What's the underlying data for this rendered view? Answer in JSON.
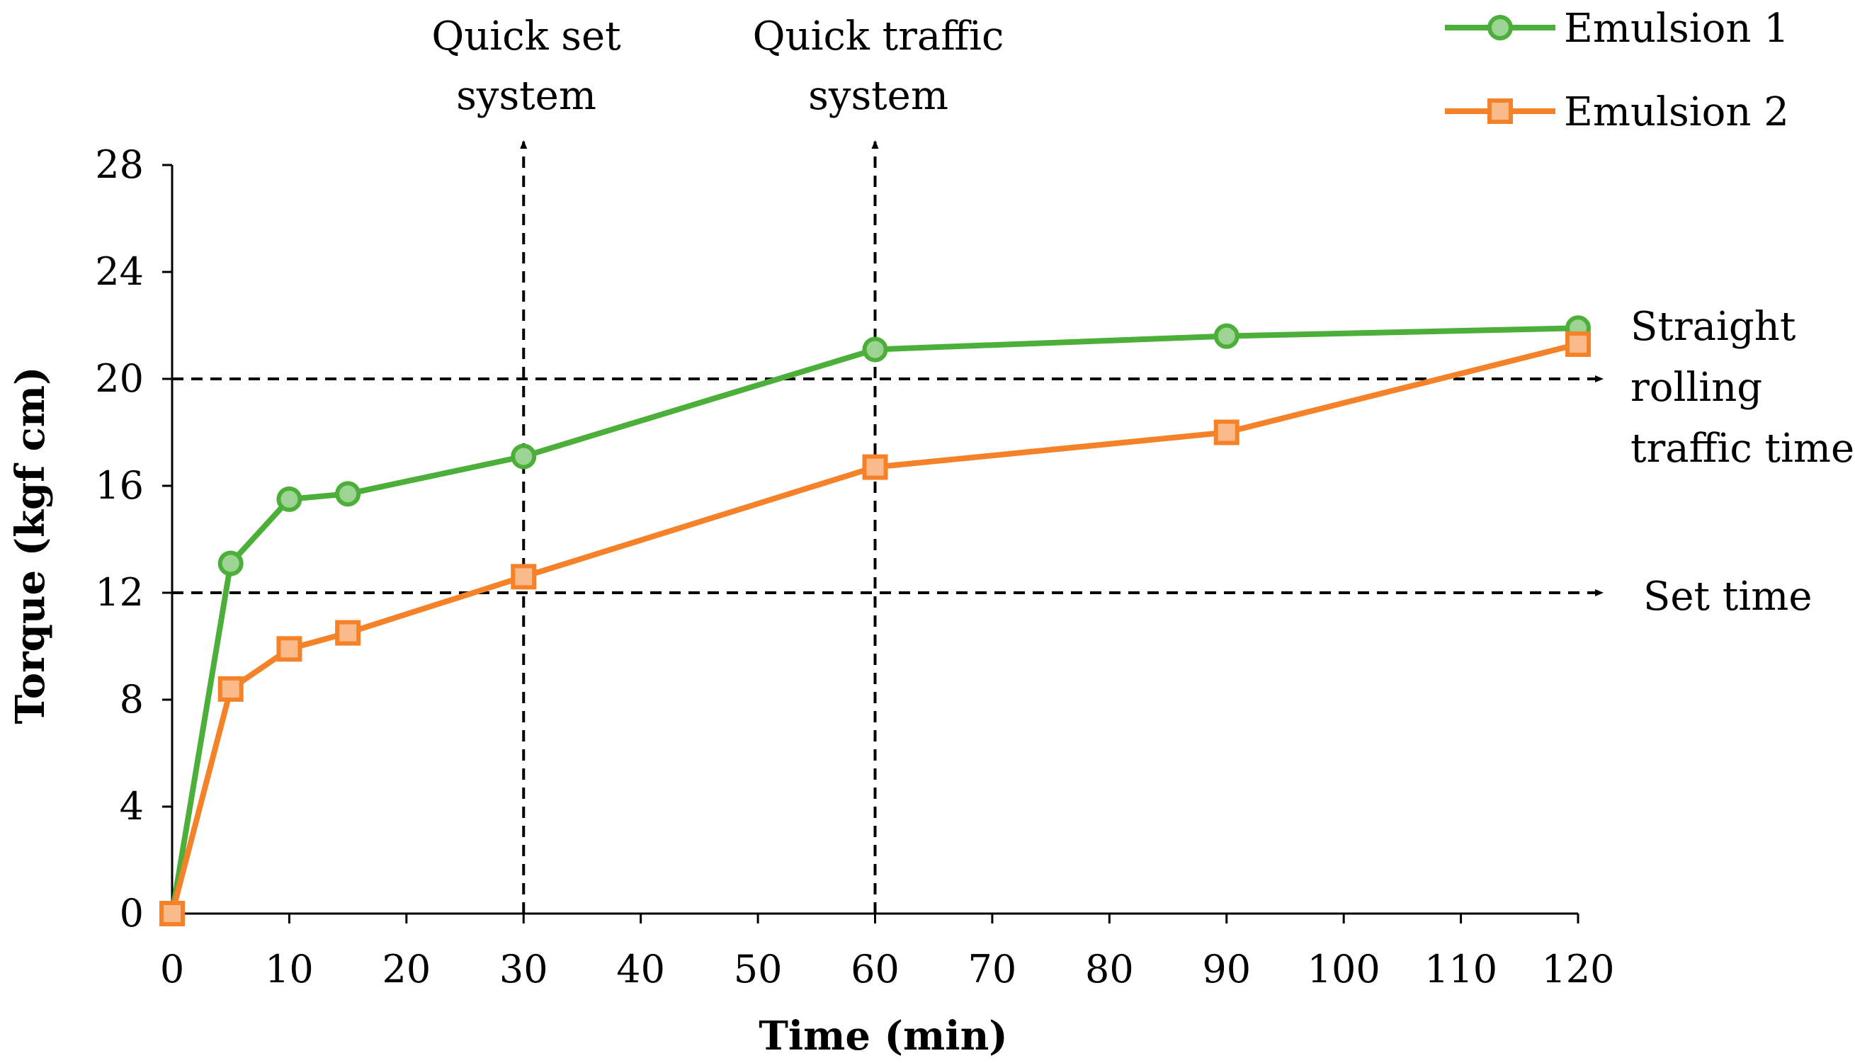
{
  "chart_data": {
    "type": "line",
    "title": "",
    "xlabel": "Time (min)",
    "ylabel": "Torque (kgf cm)",
    "xlim": [
      0,
      120
    ],
    "ylim": [
      0,
      28
    ],
    "xticks": [
      0,
      10,
      20,
      30,
      40,
      50,
      60,
      70,
      80,
      90,
      100,
      110,
      120
    ],
    "yticks": [
      0,
      4,
      8,
      12,
      16,
      20,
      24,
      28
    ],
    "grid": false,
    "legend_position": "top-right",
    "series": [
      {
        "name": "Emulsion 1",
        "color": "#4caf3a",
        "marker": "circle",
        "x": [
          0,
          5,
          10,
          15,
          30,
          60,
          90,
          120
        ],
        "y": [
          0,
          13.1,
          15.5,
          15.7,
          17.1,
          21.1,
          21.6,
          21.9
        ]
      },
      {
        "name": "Emulsion 2",
        "color": "#f58228",
        "marker": "square",
        "x": [
          0,
          5,
          10,
          15,
          30,
          60,
          90,
          120
        ],
        "y": [
          0,
          8.4,
          9.9,
          10.5,
          12.6,
          16.7,
          18.0,
          21.3
        ]
      }
    ],
    "reference_lines": {
      "vertical": [
        {
          "x": 30,
          "label_lines": [
            "Quick set",
            "system"
          ]
        },
        {
          "x": 60,
          "label_lines": [
            "Quick traffic",
            "system"
          ]
        }
      ],
      "horizontal": [
        {
          "y": 20,
          "label_lines": [
            "Straight",
            "rolling",
            "traffic time"
          ]
        },
        {
          "y": 12,
          "label_lines": [
            "Set time"
          ]
        }
      ]
    }
  }
}
